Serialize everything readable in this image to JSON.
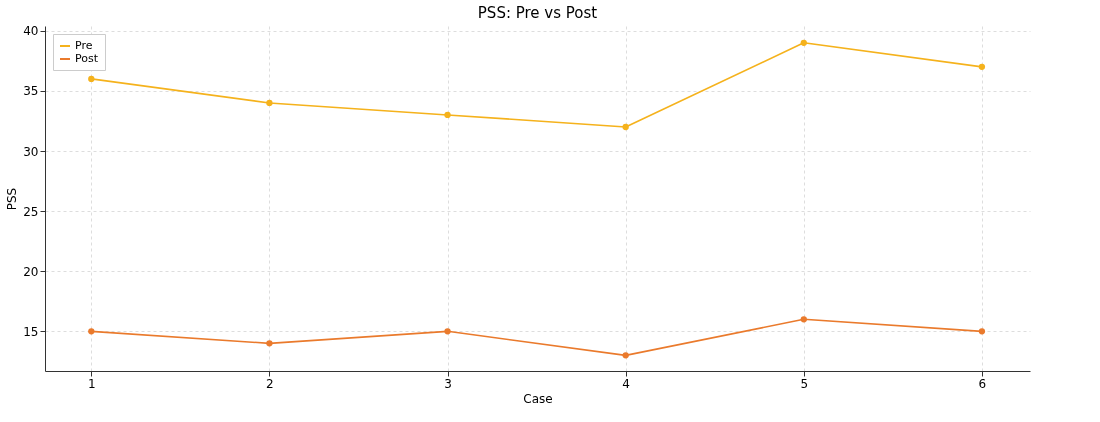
{
  "chart_data": {
    "type": "line",
    "title": "PSS: Pre vs Post",
    "xlabel": "Case",
    "ylabel": "PSS",
    "x": [
      1,
      2,
      3,
      4,
      5,
      6
    ],
    "series": [
      {
        "name": "Pre",
        "color": "#f5b21c",
        "values": [
          36,
          34,
          33,
          32,
          39,
          37
        ]
      },
      {
        "name": "Post",
        "color": "#ea7a2c",
        "values": [
          15,
          14,
          15,
          13,
          16,
          15
        ]
      }
    ],
    "xlim": [
      0.74,
      6.27
    ],
    "xticks": [
      1,
      2,
      3,
      4,
      5,
      6
    ],
    "ylim": [
      11.7,
      40.4
    ],
    "yticks": [
      15,
      20,
      25,
      30,
      35,
      40
    ],
    "grid": true,
    "legend": "top left",
    "marker": "circle",
    "line_style": "solid"
  }
}
